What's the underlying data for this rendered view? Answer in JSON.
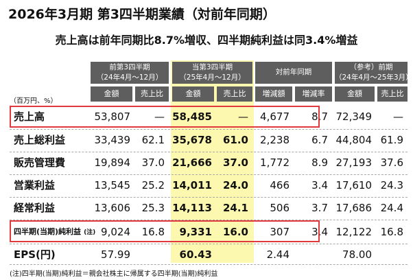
{
  "title": "2026年3月期 第3四半期業績（対前年同期）",
  "subtitle": "売上高は前年同期比8.7%増収、四半期純利益は同3.4%増益",
  "unit_label": "（百万円、%）",
  "headers": {
    "prev_q3": "前第3四半期",
    "prev_q3_period": "（24年4月〜12月）",
    "curr_q3": "当第3四半期",
    "curr_q3_period": "（25年4月〜12月）",
    "yoy": "対前年同期",
    "ref": "（参考）前期",
    "ref_period": "（24年4月〜25年3月）",
    "amount": "金額",
    "sales_ratio": "売上比",
    "change_amount": "増減額",
    "change_rate": "増減率"
  },
  "rows": [
    {
      "label": "売上高",
      "prev_amount": "53,807",
      "prev_ratio": "—",
      "curr_amount": "58,485",
      "curr_ratio": "—",
      "change_amount": "4,677",
      "change_rate": "8.7",
      "ref_amount": "72,349",
      "ref_ratio": "—"
    },
    {
      "label": "売上総利益",
      "prev_amount": "33,439",
      "prev_ratio": "62.1",
      "curr_amount": "35,678",
      "curr_ratio": "61.0",
      "change_amount": "2,238",
      "change_rate": "6.7",
      "ref_amount": "44,804",
      "ref_ratio": "61.9"
    },
    {
      "label": "販売管理費",
      "prev_amount": "19,894",
      "prev_ratio": "37.0",
      "curr_amount": "21,666",
      "curr_ratio": "37.0",
      "change_amount": "1,772",
      "change_rate": "8.9",
      "ref_amount": "27,193",
      "ref_ratio": "37.6"
    },
    {
      "label": "営業利益",
      "prev_amount": "13,545",
      "prev_ratio": "25.2",
      "curr_amount": "14,011",
      "curr_ratio": "24.0",
      "change_amount": "466",
      "change_rate": "3.4",
      "ref_amount": "17,610",
      "ref_ratio": "24.3"
    },
    {
      "label": "経常利益",
      "prev_amount": "13,606",
      "prev_ratio": "25.3",
      "curr_amount": "14,113",
      "curr_ratio": "24.1",
      "change_amount": "506",
      "change_rate": "3.7",
      "ref_amount": "17,686",
      "ref_ratio": "24.4"
    },
    {
      "label": "四半期(当期)純利益",
      "note": "(注)",
      "prev_amount": "9,024",
      "prev_ratio": "16.8",
      "curr_amount": "9,331",
      "curr_ratio": "16.0",
      "change_amount": "307",
      "change_rate": "3.4",
      "ref_amount": "12,122",
      "ref_ratio": "16.8"
    },
    {
      "label": "EPS(円)",
      "prev_amount": "57.99",
      "curr_amount": "60.43",
      "change_amount": "2.44",
      "ref_amount": "78.00"
    }
  ],
  "footnote": "(注)四半期(当期)純利益＝親会社株主に帰属する四半期(当期)純利益",
  "colors": {
    "header_bg": "#5e5e5e",
    "highlight": "#fcf8b0",
    "box": "#e0383d"
  }
}
